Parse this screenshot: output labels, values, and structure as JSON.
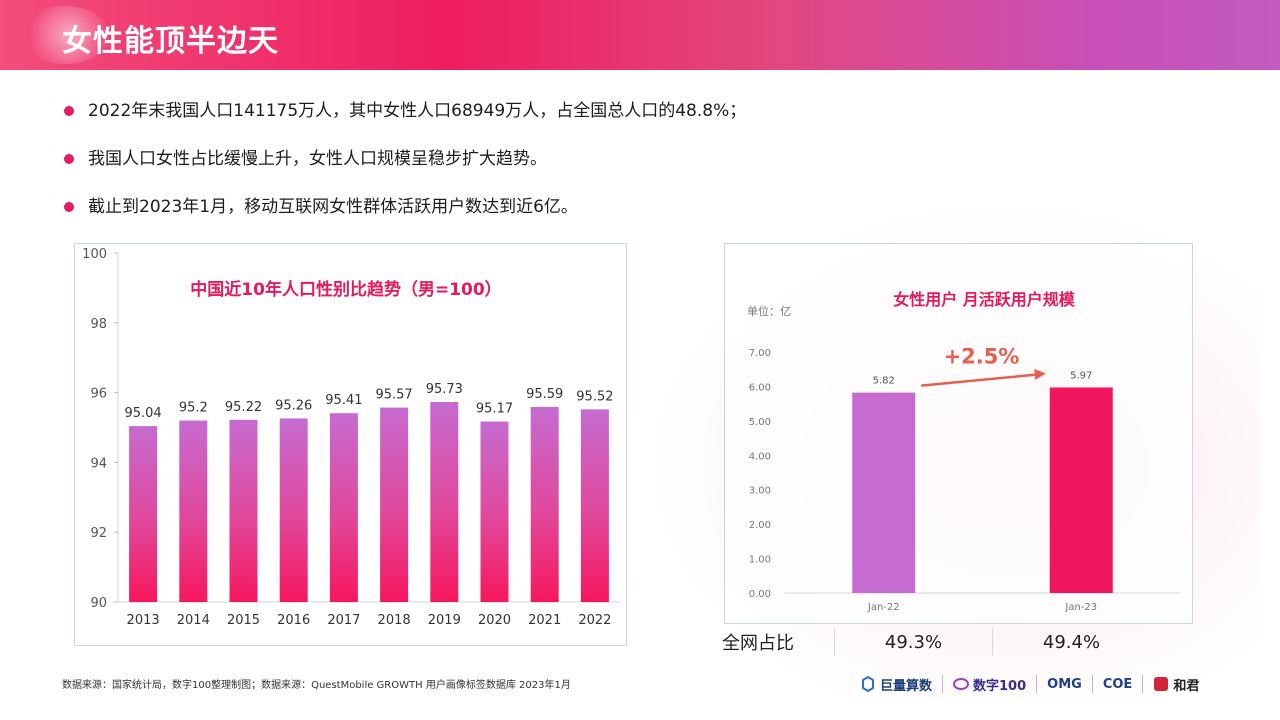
{
  "header": {
    "title": "女性能顶半边天"
  },
  "bullets": [
    "2022年末我国人口141175万人，其中女性人口68949万人，占全国总人口的48.8%；",
    "我国人口女性占比缓慢上升，女性人口规模呈稳步扩大趋势。",
    "截止到2023年1月，移动互联网女性群体活跃用户数达到近6亿。"
  ],
  "colors": {
    "accent": "#e6195a",
    "purple": "#c66bd0",
    "pink": "#f0175f",
    "banner_start": "#f24d7d",
    "banner_end": "#c25ac0"
  },
  "chart_data": [
    {
      "type": "bar",
      "title": "中国近10年人口性别比趋势（男=100）",
      "categories": [
        "2013",
        "2014",
        "2015",
        "2016",
        "2017",
        "2018",
        "2019",
        "2020",
        "2021",
        "2022"
      ],
      "values": [
        95.04,
        95.2,
        95.22,
        95.26,
        95.41,
        95.57,
        95.73,
        95.17,
        95.59,
        95.52
      ],
      "value_labels": [
        "95.04",
        "95.2",
        "95.22",
        "95.26",
        "95.41",
        "95.57",
        "95.73",
        "95.17",
        "95.59",
        "95.52"
      ],
      "ylim": [
        90,
        100
      ],
      "yticks": [
        90,
        92,
        94,
        96,
        98,
        100
      ],
      "ytick_labels": [
        "90",
        "92",
        "94",
        "96",
        "98",
        "100"
      ],
      "grid": false
    },
    {
      "type": "bar",
      "title": "女性用户 月活跃用户规模",
      "unit_label": "单位：亿",
      "categories": [
        "Jan-22",
        "Jan-23"
      ],
      "values": [
        5.82,
        5.97
      ],
      "value_labels": [
        "5.82",
        "5.97"
      ],
      "bar_colors": [
        "#c66bd0",
        "#f0175f"
      ],
      "ylim": [
        0,
        7
      ],
      "yticks": [
        0,
        1,
        2,
        3,
        4,
        5,
        6,
        7
      ],
      "ytick_labels": [
        "0.00",
        "1.00",
        "2.00",
        "3.00",
        "4.00",
        "5.00",
        "6.00",
        "7.00"
      ],
      "annotation": "+2.5%",
      "grid": false
    }
  ],
  "share_row": {
    "label": "全网占比",
    "values": [
      "49.3%",
      "49.4%"
    ]
  },
  "footer": {
    "source": "数据来源：国家统计局，数字100整理制图；数据来源：QuestMobile GROWTH 用户画像标签数据库 2023年1月"
  },
  "logos": [
    "巨量算数",
    "数字100",
    "OMG",
    "COE",
    "和君"
  ]
}
